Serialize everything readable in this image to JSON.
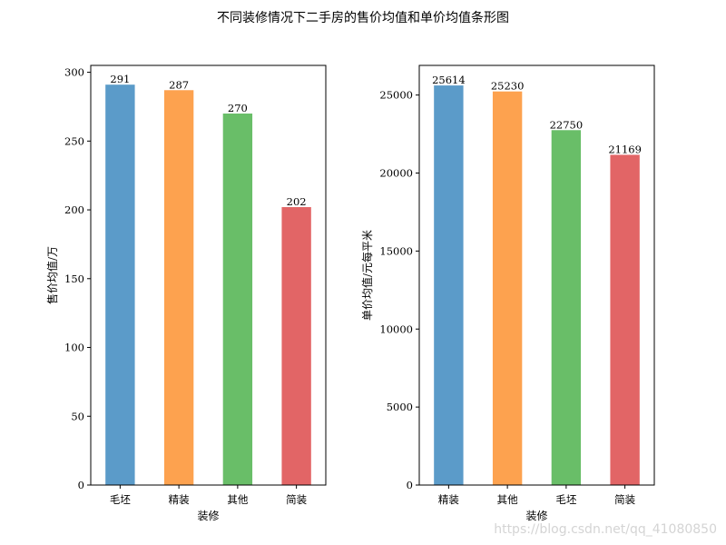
{
  "title": "不同装修情况下二手房的售价均值和单价均值条形图",
  "watermark": "https://blog.csdn.net/qq_41080850",
  "colors": [
    "#5b9bc9",
    "#fda24f",
    "#69be68",
    "#e26566"
  ],
  "chart_data": [
    {
      "type": "bar",
      "categories": [
        "毛坯",
        "精装",
        "其他",
        "简装"
      ],
      "values": [
        291,
        287,
        270,
        202
      ],
      "data_labels": [
        "291",
        "287",
        "270",
        "202"
      ],
      "xlabel": "装修",
      "ylabel": "售价均值/万",
      "ylim": [
        0,
        305
      ],
      "yticks": [
        0,
        50,
        100,
        150,
        200,
        250,
        300
      ],
      "ytick_labels": [
        "0",
        "50",
        "100",
        "150",
        "200",
        "250",
        "300"
      ],
      "grid": false,
      "legend": "none"
    },
    {
      "type": "bar",
      "categories": [
        "精装",
        "其他",
        "毛坯",
        "简装"
      ],
      "values": [
        25614,
        25230,
        22750,
        21169
      ],
      "data_labels": [
        "25614",
        "25230",
        "22750",
        "21169"
      ],
      "xlabel": "装修",
      "ylabel": "单价均值/元每平米",
      "ylim": [
        0,
        26900
      ],
      "yticks": [
        0,
        5000,
        10000,
        15000,
        20000,
        25000
      ],
      "ytick_labels": [
        "0",
        "5000",
        "10000",
        "15000",
        "20000",
        "25000"
      ],
      "grid": false,
      "legend": "none"
    }
  ]
}
